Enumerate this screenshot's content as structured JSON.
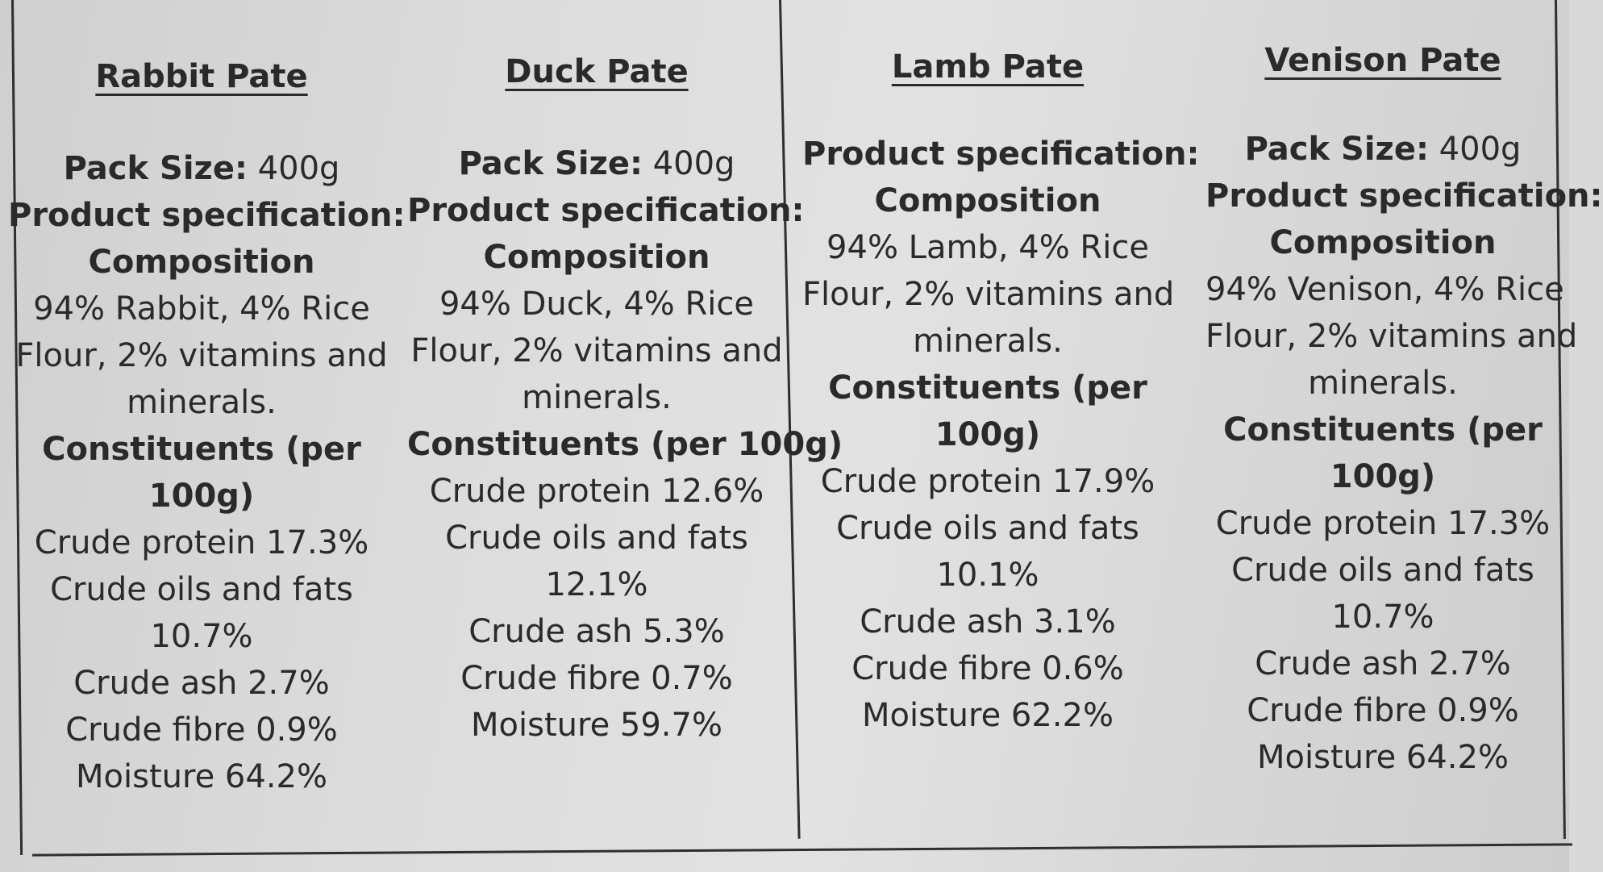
{
  "columns": [
    {
      "title": "Rabbit Pate",
      "pack_label": "Pack Size:",
      "pack_value": " 400g",
      "spec_label": "Product specification:",
      "composition_label": "Composition",
      "composition_lines": [
        "94% Rabbit, 4% Rice",
        "Flour, 2% vitamins and",
        "minerals."
      ],
      "constituents_lines": [
        "Constituents (per",
        "100g)"
      ],
      "values": [
        "Crude protein 17.3%",
        "Crude oils and fats",
        "10.7%",
        "Crude ash 2.7%",
        "Crude fibre 0.9%",
        "Moisture 64.2%"
      ]
    },
    {
      "title": "Duck Pate",
      "pack_label": "Pack Size:",
      "pack_value": " 400g",
      "spec_label": "Product specification:",
      "composition_label": "Composition",
      "composition_lines": [
        "94% Duck, 4% Rice",
        "Flour, 2% vitamins and",
        "minerals."
      ],
      "constituents_lines": [
        "Constituents (per 100g)"
      ],
      "values": [
        "Crude protein 12.6%",
        "Crude oils and fats",
        "12.1%",
        "Crude ash 5.3%",
        "Crude fibre 0.7%",
        "Moisture 59.7%"
      ]
    },
    {
      "title": "Lamb Pate",
      "spec_label": "Product specification:",
      "composition_label": "Composition",
      "composition_lines": [
        "94% Lamb, 4% Rice",
        "Flour, 2% vitamins and",
        "minerals."
      ],
      "constituents_lines": [
        "Constituents (per",
        "100g)"
      ],
      "values": [
        "Crude protein 17.9%",
        "Crude oils and fats",
        "10.1%",
        "Crude ash 3.1%",
        "Crude fibre 0.6%",
        "Moisture 62.2%"
      ]
    },
    {
      "title": "Venison Pate",
      "pack_label": "Pack Size:",
      "pack_value": " 400g",
      "spec_label": "Product specification:",
      "composition_label": "Composition",
      "composition_lines": [
        "94% Venison, 4% Rice",
        "Flour, 2% vitamins and",
        "minerals."
      ],
      "constituents_lines": [
        "Constituents (per",
        "100g)"
      ],
      "values": [
        "Crude protein 17.3%",
        "Crude oils and fats",
        "10.7%",
        "Crude ash 2.7%",
        "Crude fibre 0.9%",
        "Moisture 64.2%"
      ]
    }
  ]
}
